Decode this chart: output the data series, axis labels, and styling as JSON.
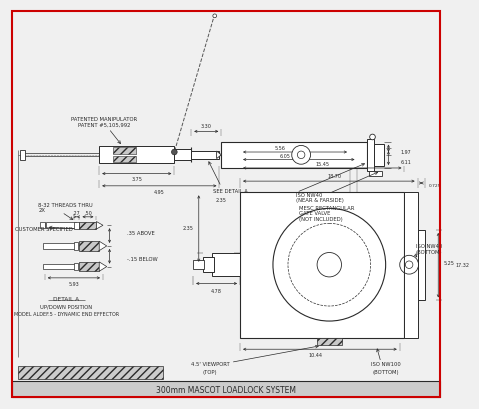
{
  "bg_color": "#f0f0f0",
  "border_color": "#cc0000",
  "line_color": "#2a2a2a",
  "bg_white": "#ffffff",
  "gray_fill": "#c8c8c8",
  "dims": {
    "d375": "3.75",
    "d495": "4.95",
    "d330": "3.30",
    "d197": "1.97",
    "d611": "6.11",
    "d1870": "18.70",
    "d1545": "15.45",
    "d605": "6.05",
    "d556": "5.56",
    "d0725": "0.725",
    "d235": "2.35",
    "d478": "4.78",
    "d1044": "10.44",
    "d525": "5.25",
    "d1732": "17.32",
    "d50": ".50",
    "d27": ".27",
    "d593": "5.93"
  },
  "labels": {
    "patented1": "PATENTED MANIPULATOR",
    "patented2": "PATENT #5,105,992",
    "see_detail": "SEE DETAIL A",
    "iso_nw40_near1": "ISO NW40",
    "iso_nw40_near2": "(NEAR & FARSIDE)",
    "mesc1": "MESC RECTANGULAR",
    "mesc2": "GATE VALVE",
    "mesc3": "(NOT INCLUDED)",
    "threads1": "8-32 THREADS THRU",
    "threads2": "2X",
    "cust_spec": "CUSTOMER SPECIFIED",
    "above": ".35 ABOVE",
    "below": "-.15 BELOW",
    "detail_a1": "DETAIL A",
    "detail_a2": "UP/DOWN POSITION",
    "model": "MODEL ALDEF.5 - DYNAMIC END EFFECTOR",
    "iso_nw40_bot1": "ISO NW40",
    "iso_nw40_bot2": "(BOTTOM)",
    "viewport1": "4.5' VIEWPORT",
    "viewport2": "(TOP)",
    "iso_nw100_1": "ISO NW100",
    "iso_nw100_2": "(BOTTOM)",
    "title": "300mm MASCOT LOADLOCK SYSTEM"
  }
}
